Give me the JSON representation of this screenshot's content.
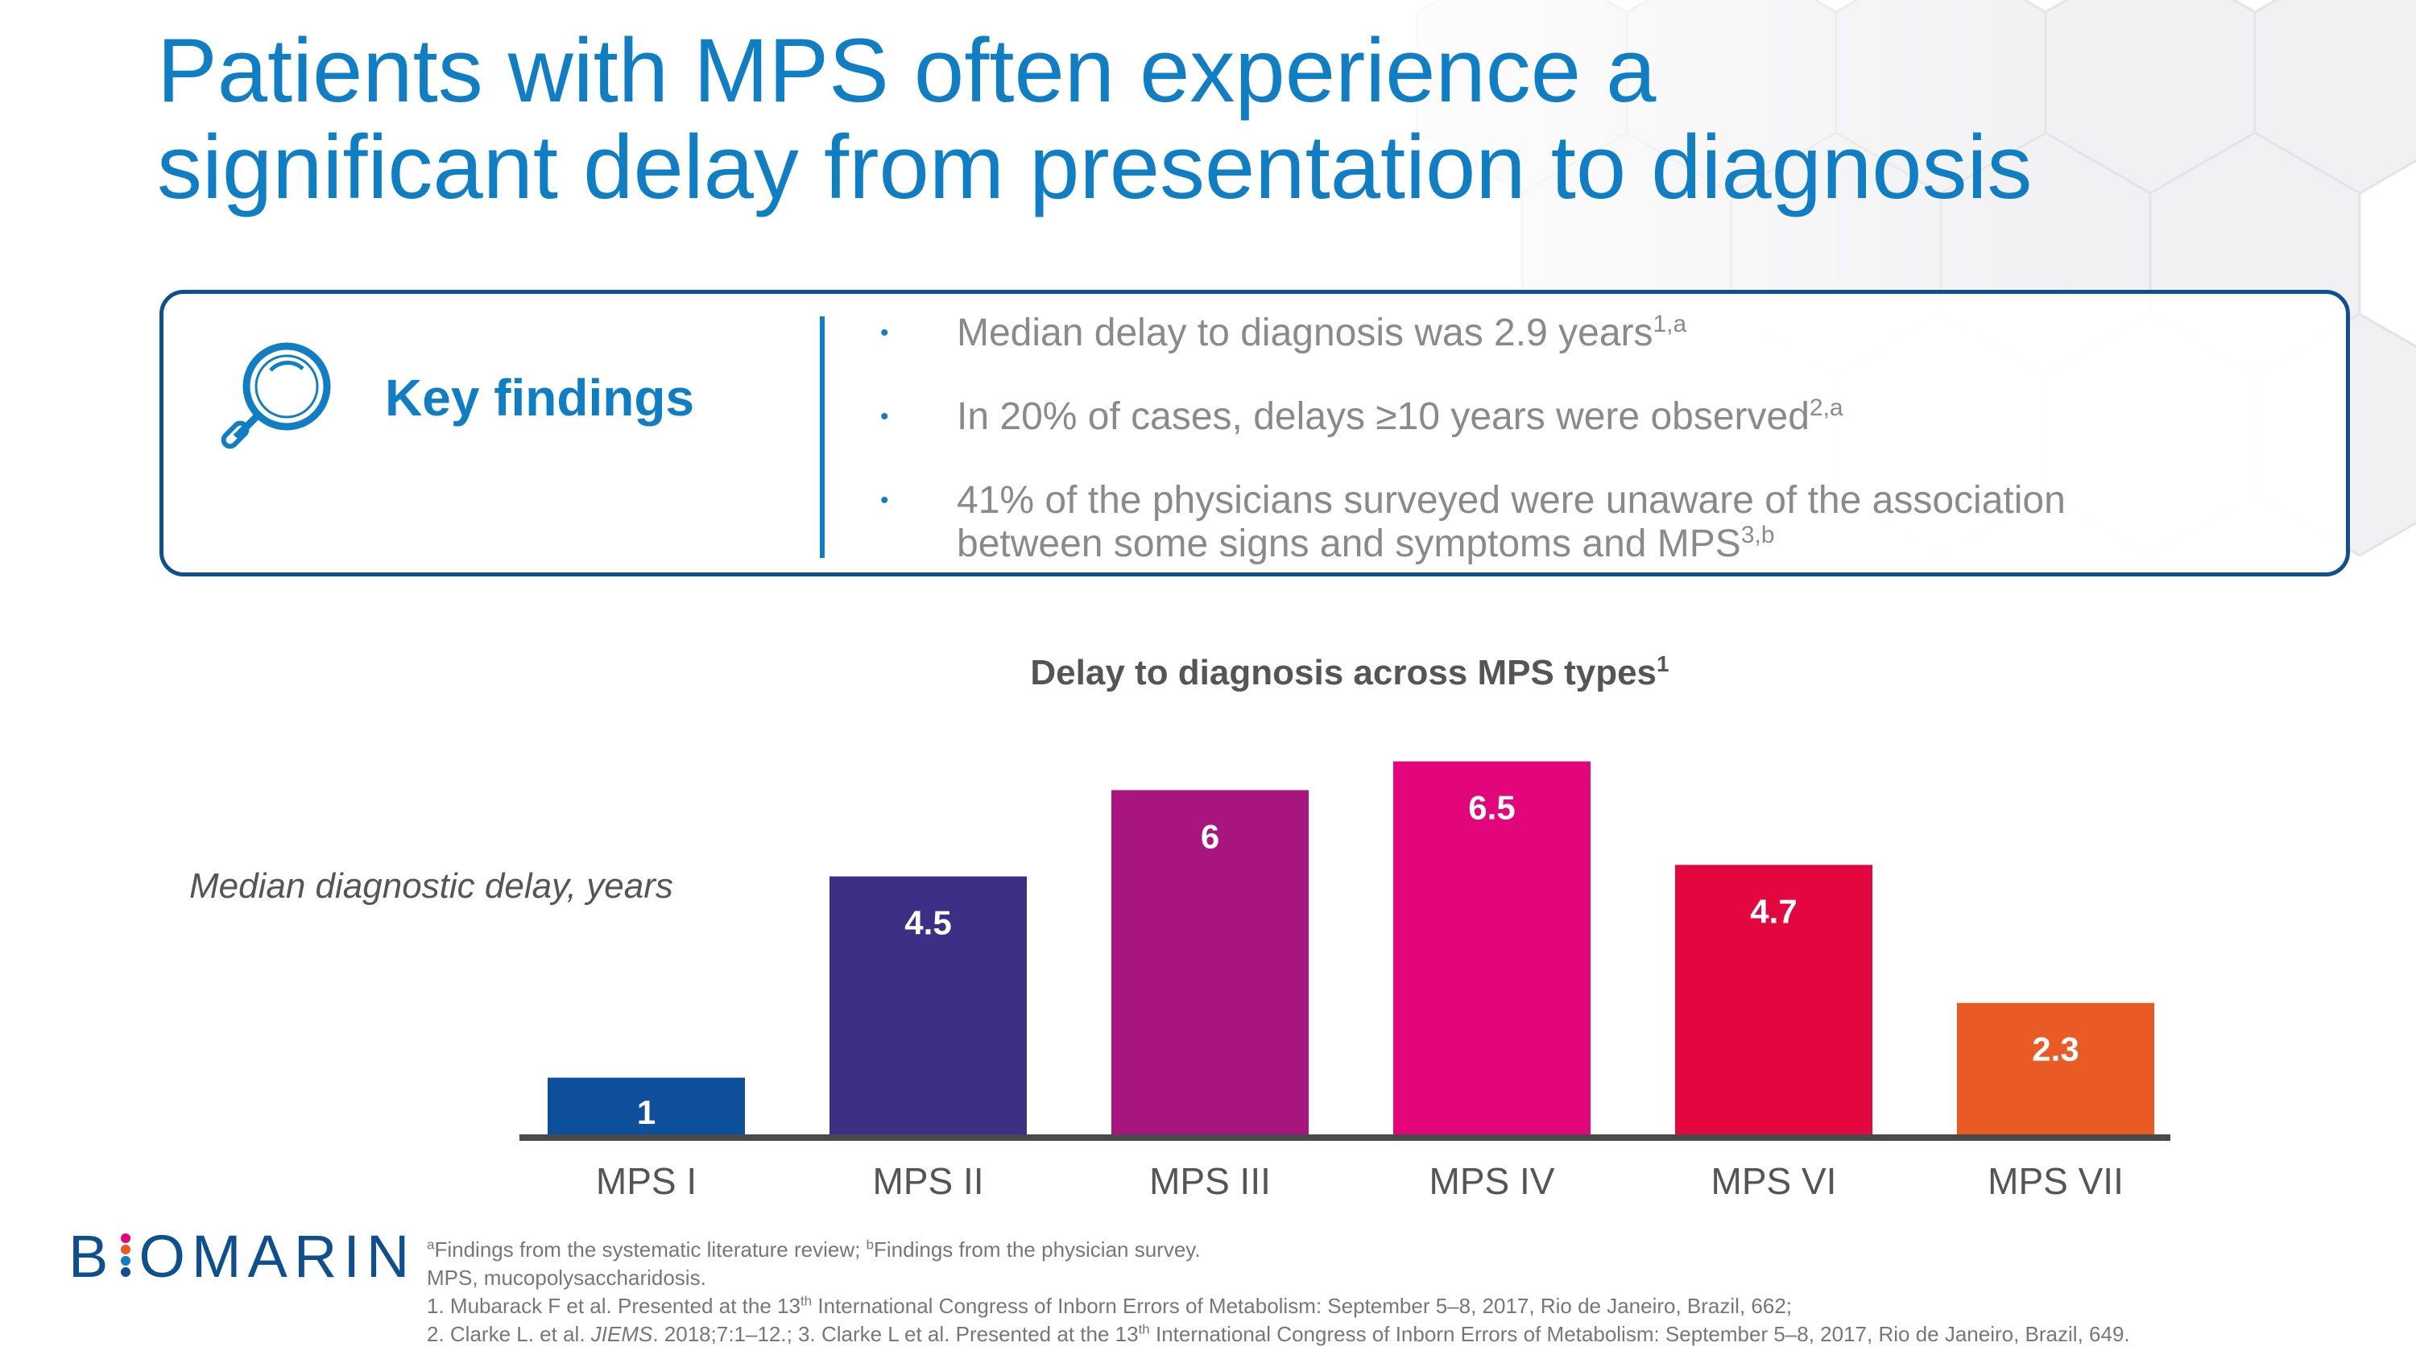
{
  "title": {
    "line1": "Patients with MPS often experience a",
    "line2": "significant delay from presentation to diagnosis"
  },
  "key_findings": {
    "heading": "Key findings",
    "icon": "magnifier-icon",
    "items": [
      {
        "text": "Median delay to diagnosis was 2.9 years",
        "sup": "1,a"
      },
      {
        "text": "In 20% of cases, delays ≥10 years were observed",
        "sup": "2,a"
      },
      {
        "text_line1": "41% of the physicians surveyed were unaware of the association",
        "text_line2": "between some signs and symptoms and MPS",
        "sup": "3,b"
      }
    ],
    "bullet": "•"
  },
  "chart_data": {
    "type": "bar",
    "title": "Delay to diagnosis across MPS types",
    "title_sup": "1",
    "ylabel": "Median diagnostic delay, years",
    "xlabel": "",
    "categories": [
      "MPS I",
      "MPS II",
      "MPS III",
      "MPS IV",
      "MPS VI",
      "MPS VII"
    ],
    "values": [
      1,
      4.5,
      6,
      6.5,
      4.7,
      2.3
    ],
    "data_labels": [
      "1",
      "4.5",
      "6",
      "6.5",
      "4.7",
      "2.3"
    ],
    "colors": [
      "#0d4f9b",
      "#3d2f86",
      "#a8157e",
      "#e2067a",
      "#e4063f",
      "#ea5a24"
    ],
    "ylim": [
      0,
      7
    ],
    "grid": false,
    "y_axis_shown": false,
    "data_labels_inside": true
  },
  "footnotes": {
    "a_marker": "a",
    "a_text": "Findings from the systematic literature review; ",
    "b_marker": "b",
    "b_text": "Findings from the physician survey.",
    "abbrev": "MPS, mucopolysaccharidosis.",
    "ref1_pre": "1. Mubarack F et al. Presented at the 13",
    "ref1_th": "th",
    "ref1_post": " International Congress of Inborn Errors of Metabolism: September 5–8, 2017, Rio de Janeiro, Brazil, 662;",
    "ref2_pre": "2. Clarke L. et al. ",
    "ref2_journal": "JIEMS",
    "ref2_mid": ". 2018;7:1–12.; 3. Clarke L et al. Presented at the 13",
    "ref2_th": "th",
    "ref2_post": " International Congress of Inborn Errors of Metabolism: September 5–8, 2017, Rio de Janeiro, Brazil, 649."
  },
  "logo": {
    "left": "B",
    "right": "OMARIN",
    "dot_colors": [
      "#e2067a",
      "#ea5a24",
      "#0f7ec4",
      "#0d4f8f"
    ]
  },
  "colors": {
    "title": "#0f7ec4",
    "box_border": "#0d4f8f",
    "finding_text": "#8a8a8a",
    "baseline": "#4a4a4a"
  }
}
